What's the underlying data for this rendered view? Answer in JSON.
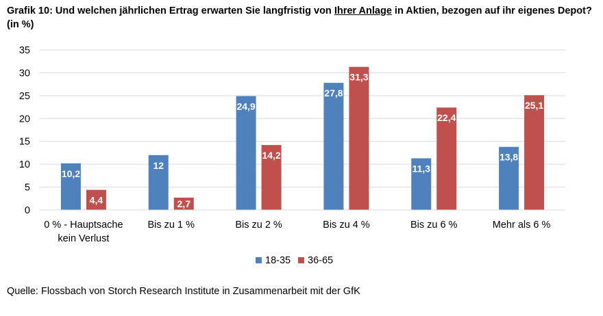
{
  "title": {
    "part1": "Grafik 10: Und welchen jährlichen Ertrag erwarten Sie langfristig von ",
    "underlined": "Ihrer Anlage",
    "part2": " in Aktien, bezogen auf ihr eigenes Depot?",
    "line2": "(in %)"
  },
  "source": "Quelle: Flossbach von Storch Research Institute in Zusammenarbeit mit der GfK",
  "chart_data": {
    "type": "bar",
    "categories": [
      [
        "0 % - Hauptsache",
        "kein Verlust"
      ],
      [
        "Bis zu 1 %"
      ],
      [
        "Bis zu 2 %"
      ],
      [
        "Bis zu 4 %"
      ],
      [
        "Bis zu 6 %"
      ],
      [
        "Mehr als 6 %"
      ]
    ],
    "series": [
      {
        "name": "18-35",
        "color": "#4f81bd",
        "values": [
          10.2,
          12,
          24.9,
          27.8,
          11.3,
          13.8
        ],
        "labels": [
          "10,2",
          "12",
          "24,9",
          "27,8",
          "11,3",
          "13,8"
        ]
      },
      {
        "name": "36-65",
        "color": "#c0504d",
        "values": [
          4.4,
          2.7,
          14.2,
          31.3,
          22.4,
          25.1
        ],
        "labels": [
          "4,4",
          "2,7",
          "14,2",
          "31,3",
          "22,4",
          "25,1"
        ]
      }
    ],
    "yticks": [
      "0",
      "5",
      "10",
      "15",
      "20",
      "25",
      "30",
      "35"
    ],
    "ylim": [
      0,
      35
    ],
    "grid": true,
    "legend_position": "bottom-center",
    "title": "Grafik 10: Und welchen jährlichen Ertrag erwarten Sie langfristig von Ihrer Anlage in Aktien, bezogen auf ihr eigenes Depot? (in %)",
    "xlabel": "",
    "ylabel": ""
  }
}
